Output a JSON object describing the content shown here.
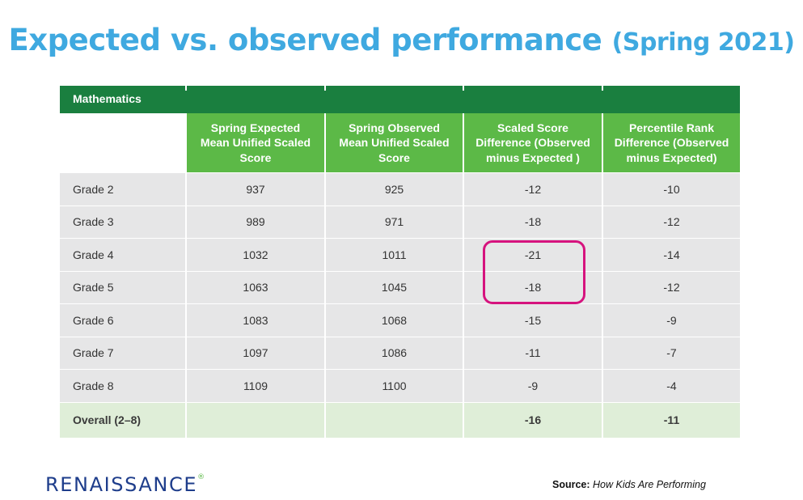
{
  "title": {
    "main": "Expected vs. observed performance",
    "sub": "(Spring 2021)"
  },
  "table": {
    "section": "Mathematics",
    "headers": [
      "",
      "Spring Expected Mean Unified Scaled Score",
      "Spring Observed Mean Unified Scaled Score",
      "Scaled Score Difference (Observed minus Expected )",
      "Percentile Rank Difference (Observed minus Expected)"
    ],
    "rows": [
      [
        "Grade 2",
        "937",
        "925",
        "-12",
        "-10"
      ],
      [
        "Grade 3",
        "989",
        "971",
        "-18",
        "-12"
      ],
      [
        "Grade 4",
        "1032",
        "1011",
        "-21",
        "-14"
      ],
      [
        "Grade 5",
        "1063",
        "1045",
        "-18",
        "-12"
      ],
      [
        "Grade 6",
        "1083",
        "1068",
        "-15",
        "-9"
      ],
      [
        "Grade 7",
        "1097",
        "1086",
        "-11",
        "-7"
      ],
      [
        "Grade 8",
        "1109",
        "1100",
        "-9",
        "-4"
      ]
    ],
    "total": [
      "Overall (2–8)",
      "",
      "",
      "-16",
      "-11"
    ]
  },
  "logo": {
    "text": "RENAISSANCE",
    "mark": "®"
  },
  "source": {
    "label": "Source:",
    "value": "How Kids Are Performing"
  },
  "colors": {
    "title": "#3fa9e0",
    "section_bar": "#1a7f3f",
    "header_green": "#5cb947",
    "row_gray": "#e6e6e7",
    "total_row": "#dfeed8",
    "highlight": "#d6137e",
    "logo": "#1e3d8b"
  }
}
